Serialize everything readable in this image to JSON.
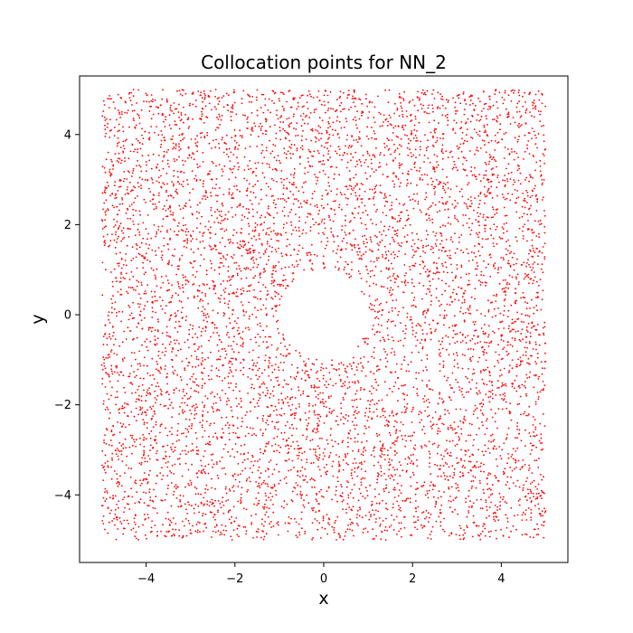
{
  "chart_data": {
    "type": "scatter",
    "title": "Collocation points for NN_2",
    "xlabel": "x",
    "ylabel": "y",
    "xlim": [
      -5.5,
      5.5
    ],
    "ylim": [
      -5.5,
      5.3
    ],
    "xticks": [
      -4,
      -2,
      0,
      2,
      4
    ],
    "yticks": [
      -4,
      -2,
      0,
      2,
      4
    ],
    "xtick_labels": [
      "−4",
      "−2",
      "0",
      "2",
      "4"
    ],
    "ytick_labels": [
      "−4",
      "−2",
      "0",
      "2",
      "4"
    ],
    "grid": false,
    "legend": "none",
    "marker_color": "#ff0000",
    "domain": {
      "x_range": [
        -5,
        5
      ],
      "y_range": [
        -5,
        5
      ],
      "hole_center": [
        0,
        0
      ],
      "hole_radius": 1
    },
    "series": [
      {
        "point_count": 7000
      }
    ]
  }
}
